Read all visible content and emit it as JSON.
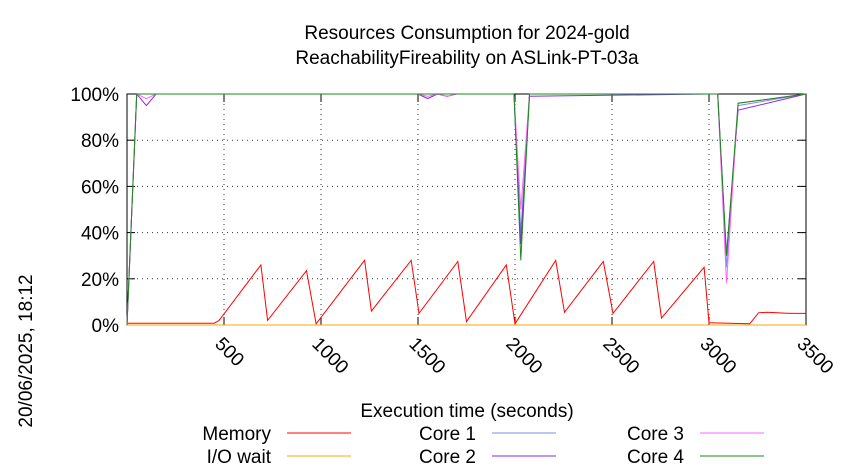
{
  "chart_data": {
    "type": "line",
    "title_line1": "Resources Consumption for 2024-gold",
    "title_line2": "ReachabilityFireability on ASLink-PT-03a",
    "xlabel": "Execution time (seconds)",
    "ylabel": "",
    "side_label": "20/06/2025, 18:12",
    "xlim": [
      0,
      3500
    ],
    "ylim": [
      0,
      100
    ],
    "x_ticks": [
      500,
      1000,
      1500,
      2000,
      2500,
      3000,
      3500
    ],
    "x_tick_labels": [
      "500",
      "1000",
      "1500",
      "2000",
      "2500",
      "3000",
      "3500"
    ],
    "y_ticks": [
      0,
      20,
      40,
      60,
      80,
      100
    ],
    "y_tick_labels": [
      "0%",
      "20%",
      "40%",
      "60%",
      "80%",
      "100%"
    ],
    "legend_position": "bottom",
    "series": [
      {
        "name": "Memory",
        "color": "#ff0000",
        "x": [
          0,
          50,
          150,
          250,
          350,
          450,
          475,
          690,
          725,
          925,
          975,
          1225,
          1260,
          1465,
          1505,
          1705,
          1750,
          1955,
          2000,
          2210,
          2255,
          2455,
          2505,
          2715,
          2755,
          2975,
          3000,
          3210,
          3255,
          3300,
          3350,
          3400,
          3450,
          3500
        ],
        "y": [
          0.8,
          0.8,
          0.8,
          0.8,
          0.8,
          0.8,
          2,
          26,
          2,
          23.5,
          0.5,
          28,
          6,
          28,
          5,
          27.5,
          1.5,
          26,
          0.5,
          28,
          5.5,
          27.5,
          5,
          27.5,
          3,
          25,
          1,
          0.5,
          5.3,
          5.5,
          5.3,
          5.1,
          5.0,
          5.0
        ]
      },
      {
        "name": "I/O wait",
        "color": "#ffa500",
        "x": [
          0,
          3500
        ],
        "y": [
          0,
          0
        ]
      },
      {
        "name": "Core 1",
        "color": "#7b92e6",
        "x": [
          0,
          50,
          100,
          1500,
          1550,
          1600,
          1650,
          1700,
          1950,
          1995,
          2030,
          2075,
          3000,
          3045,
          3090,
          3150,
          3500
        ],
        "y": [
          0,
          100,
          100,
          100,
          98,
          100,
          99,
          100,
          100,
          100,
          40,
          100,
          100,
          100,
          25,
          95,
          100
        ]
      },
      {
        "name": "Core 2",
        "color": "#8b2be2",
        "x": [
          0,
          50,
          100,
          150,
          1500,
          1550,
          1600,
          1650,
          1700,
          1950,
          1995,
          2030,
          2075,
          3000,
          3045,
          3090,
          3150,
          3500
        ],
        "y": [
          0,
          100,
          95,
          100,
          100,
          98,
          100,
          99,
          100,
          100,
          100,
          35,
          99,
          100,
          100,
          30,
          93,
          100
        ]
      },
      {
        "name": "Core 3",
        "color": "#ff66ff",
        "x": [
          0,
          50,
          100,
          150,
          1500,
          1550,
          1600,
          1650,
          1700,
          1950,
          1995,
          2030,
          2075,
          3000,
          3045,
          3090,
          3150,
          3500
        ],
        "y": [
          0,
          100,
          98,
          100,
          100,
          99,
          100,
          99,
          100,
          100,
          100,
          50,
          100,
          100,
          100,
          18,
          96,
          100
        ]
      },
      {
        "name": "Core 4",
        "color": "#1a8a1a",
        "x": [
          0,
          50,
          1950,
          1995,
          2030,
          2075,
          3000,
          3045,
          3090,
          3150,
          3500
        ],
        "y": [
          0,
          100,
          100,
          100,
          28,
          100,
          100,
          100,
          30,
          96,
          100
        ]
      }
    ]
  }
}
